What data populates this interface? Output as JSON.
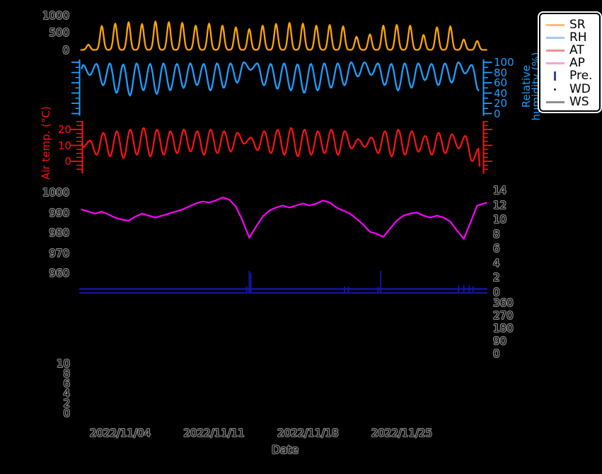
{
  "chart_data": {
    "type": "line",
    "background": "#000000",
    "x_axis": {
      "label": "Date",
      "tick_labels": [
        "2022/11/04",
        "2022/11/11",
        "2022/11/18",
        "2022/11/25"
      ]
    },
    "axes": {
      "sr": {
        "side": "left",
        "ticks": [
          "1000",
          "500",
          "0"
        ],
        "ylim": [
          0,
          1100
        ]
      },
      "rh": {
        "side": "right",
        "color": "#1E9EFF",
        "title_line1": "Relative",
        "title_line2": "humidity (%)",
        "ticks": [
          "100",
          "80",
          "60",
          "40",
          "20",
          "0"
        ],
        "ylim": [
          0,
          105
        ]
      },
      "at": {
        "side": "left",
        "color": "#FF1212",
        "title": "Air temp. (°C)",
        "ticks": [
          "20",
          "10",
          "0"
        ],
        "ylim": [
          -5,
          25
        ]
      },
      "ap": {
        "side": "left",
        "ticks": [
          "1000",
          "990",
          "980",
          "970",
          "960"
        ],
        "ylim": [
          958,
          1002
        ]
      },
      "ws": {
        "side": "right",
        "ticks": [
          "14",
          "12",
          "10",
          "8",
          "6",
          "4",
          "2",
          "0"
        ],
        "ylim": [
          0,
          14
        ]
      },
      "wd": {
        "side": "right",
        "ticks": [
          "360",
          "270",
          "180",
          "90",
          "0"
        ],
        "ylim": [
          0,
          360
        ]
      },
      "pre": {
        "side": "left",
        "ticks": [
          "10",
          "8",
          "6",
          "4",
          "2",
          "0"
        ],
        "ylim": [
          0,
          10
        ]
      }
    },
    "legend": [
      {
        "label": "SR",
        "color": "#F9BE79",
        "marker": "line"
      },
      {
        "label": "RH",
        "color": "#A6C8F0",
        "marker": "line"
      },
      {
        "label": "AT",
        "color": "#F09090",
        "marker": "line"
      },
      {
        "label": "AP",
        "color": "#F5A3D7",
        "marker": "line"
      },
      {
        "label": "Pre.",
        "color": "#3C3CA8",
        "marker": "vline"
      },
      {
        "label": "WD",
        "color": "#1A1A1A",
        "marker": "dot"
      },
      {
        "label": "WS",
        "color": "#8F8F8F",
        "marker": "line"
      }
    ],
    "series": {
      "sr": {
        "color": "#FFA500",
        "daily_max": [
          150,
          690,
          760,
          800,
          750,
          820,
          800,
          780,
          700,
          760,
          700,
          650,
          600,
          700,
          750,
          780,
          760,
          700,
          720,
          680,
          380,
          450,
          700,
          720,
          700,
          430,
          650,
          680,
          300,
          260
        ]
      },
      "rh": {
        "color": "#1E9EFF",
        "daily_min": [
          75,
          55,
          40,
          35,
          45,
          38,
          45,
          50,
          55,
          45,
          50,
          60,
          85,
          55,
          48,
          45,
          40,
          45,
          50,
          55,
          72,
          75,
          55,
          45,
          50,
          65,
          55,
          60,
          78,
          45
        ],
        "daily_max": [
          95,
          97,
          98,
          96,
          98,
          97,
          98,
          97,
          98,
          97,
          98,
          98,
          100,
          98,
          97,
          98,
          96,
          97,
          98,
          98,
          100,
          100,
          98,
          97,
          98,
          98,
          97,
          98,
          100,
          95
        ]
      },
      "at": {
        "color": "#FF1212",
        "daily_min": [
          9,
          4,
          3,
          2,
          4,
          3,
          4,
          5,
          6,
          4,
          5,
          6,
          11,
          7,
          5,
          4,
          3,
          4,
          5,
          4,
          8,
          9,
          5,
          3,
          4,
          6,
          4,
          5,
          8,
          0
        ],
        "daily_max": [
          13,
          18,
          19,
          20,
          21,
          20,
          19,
          20,
          19,
          20,
          19,
          18,
          15,
          19,
          20,
          21,
          20,
          19,
          20,
          19,
          14,
          15,
          19,
          20,
          19,
          16,
          18,
          17,
          16,
          8
        ],
        "end_value": -3
      },
      "ap": {
        "color": "#FF00FF",
        "halfday_values": [
          991.5,
          990.5,
          989.5,
          990.5,
          989,
          987.5,
          986.5,
          986,
          988,
          989.5,
          988.5,
          987.5,
          988.5,
          989.5,
          990.5,
          991.5,
          993,
          994.5,
          995.5,
          995,
          996,
          997.5,
          996.5,
          993,
          986,
          977.5,
          983,
          988,
          991,
          992.5,
          993.5,
          992.5,
          993.5,
          994.5,
          993.5,
          994.5,
          996,
          995,
          992.5,
          991,
          989.5,
          987,
          984,
          980.5,
          979.5,
          978,
          982,
          986,
          988.5,
          989.5,
          990,
          988.5,
          987.5,
          988.5,
          987.5,
          985.5,
          981,
          977,
          985,
          993.5,
          994.5
        ]
      },
      "pre": {
        "color": "#1414A8",
        "events": [
          {
            "day": 12.3,
            "mm": 1.5
          },
          {
            "day": 12.5,
            "mm": 10
          },
          {
            "day": 12.62,
            "mm": 9
          },
          {
            "day": 19.6,
            "mm": 1.5
          },
          {
            "day": 19.9,
            "mm": 1.3
          },
          {
            "day": 22.1,
            "mm": 1.2
          },
          {
            "day": 22.3,
            "mm": 10
          },
          {
            "day": 28.1,
            "mm": 2
          },
          {
            "day": 28.5,
            "mm": 2.3
          },
          {
            "day": 28.9,
            "mm": 2
          },
          {
            "day": 29.2,
            "mm": 1.5
          }
        ]
      }
    }
  }
}
